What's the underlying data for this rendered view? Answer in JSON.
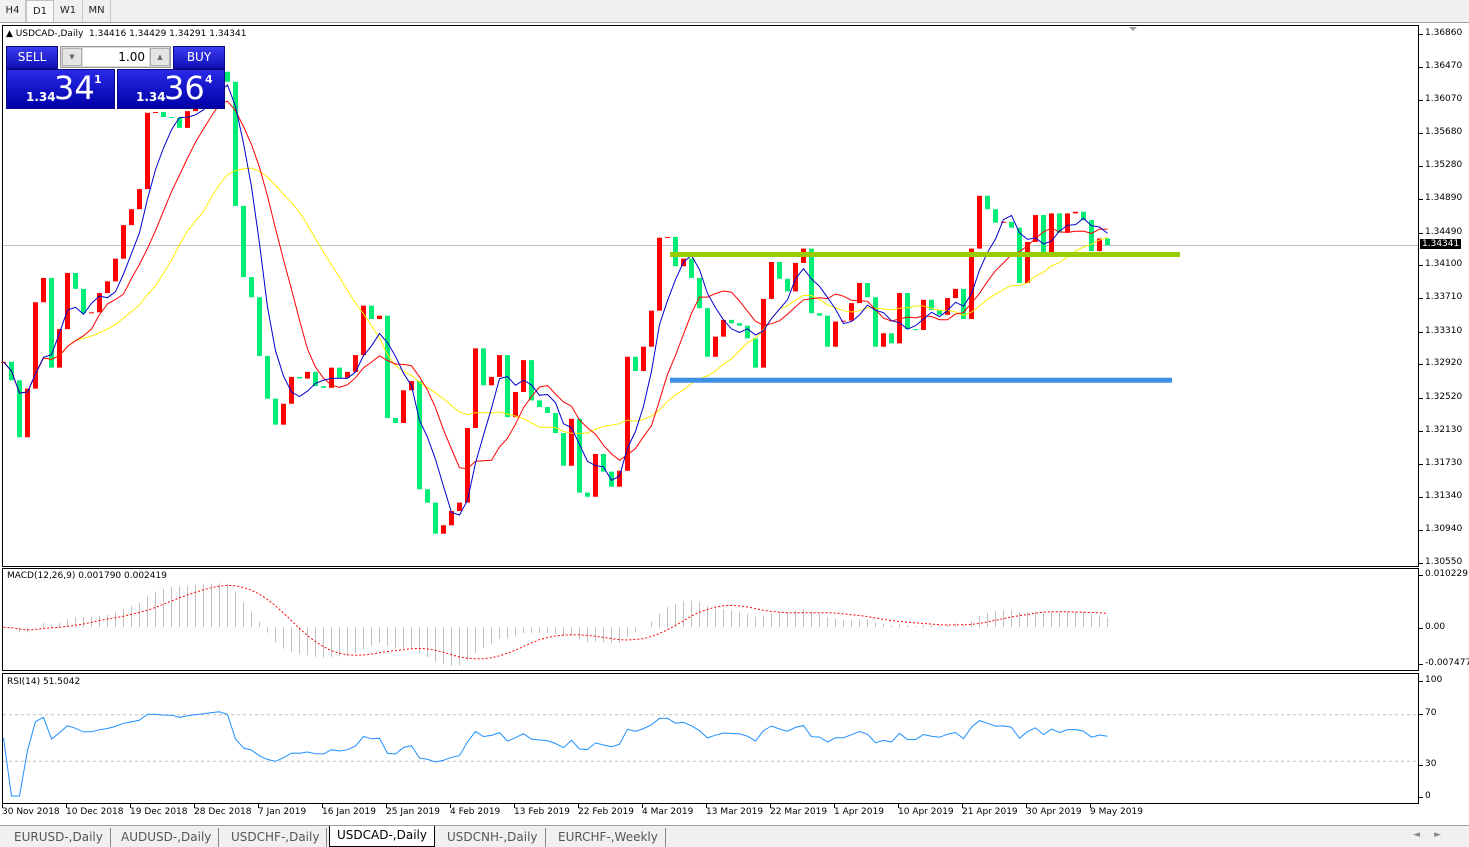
{
  "timeframes": [
    {
      "label": "H4",
      "active": false
    },
    {
      "label": "D1",
      "active": true
    },
    {
      "label": "W1",
      "active": false
    },
    {
      "label": "MN",
      "active": false
    }
  ],
  "chart_header": {
    "symbol": "USDCAD-,Daily",
    "ohlc": "1.34416 1.34429 1.34291 1.34341"
  },
  "trade_panel": {
    "sell_label": "SELL",
    "buy_label": "BUY",
    "quantity": "1.00",
    "sell_price": {
      "prefix": "1.34",
      "big": "34",
      "sup": "1"
    },
    "buy_price": {
      "prefix": "1.34",
      "big": "36",
      "sup": "4"
    }
  },
  "colors": {
    "up_candle": "#ff0000",
    "down_candle": "#00ee76",
    "ma_fast": "#0000d0",
    "ma_mid": "#ff0000",
    "ma_slow": "#ffee00",
    "support_line": "#3c91e6",
    "resistance_line": "#99cc00",
    "macd_hist": "#c0c0c0",
    "macd_signal": "#ff0000",
    "rsi_line": "#1e90ff"
  },
  "chart_data": {
    "type": "candlestick",
    "ylim": [
      1.3055,
      1.3686
    ],
    "yticks": [
      "1.36860",
      "1.36470",
      "1.36070",
      "1.35680",
      "1.35280",
      "1.34890",
      "1.34490",
      "1.34100",
      "1.33710",
      "1.33310",
      "1.32920",
      "1.32520",
      "1.32130",
      "1.31730",
      "1.31340",
      "1.30940",
      "1.30550"
    ],
    "current_price": "1.34341",
    "close": [
      1.3295,
      1.3273,
      1.3205,
      1.3263,
      1.3366,
      1.3395,
      1.3288,
      1.3334,
      1.3401,
      1.3382,
      1.3353,
      1.3354,
      1.3377,
      1.3391,
      1.3418,
      1.3458,
      1.3477,
      1.3501,
      1.3592,
      1.3593,
      1.3587,
      1.3586,
      1.3574,
      1.3594,
      1.3607,
      1.3617,
      1.3631,
      1.3641,
      1.3629,
      1.3481,
      1.3396,
      1.3372,
      1.3302,
      1.3251,
      1.322,
      1.3245,
      1.3277,
      1.3275,
      1.3283,
      1.3266,
      1.3264,
      1.3288,
      1.3276,
      1.3283,
      1.3303,
      1.3362,
      1.3346,
      1.335,
      1.3228,
      1.3222,
      1.3261,
      1.3272,
      1.3143,
      1.3127,
      1.309,
      1.31,
      1.3117,
      1.3127,
      1.3216,
      1.3311,
      1.3267,
      1.3277,
      1.3303,
      1.3229,
      1.3259,
      1.3297,
      1.3249,
      1.3241,
      1.3234,
      1.321,
      1.3171,
      1.3227,
      1.3139,
      1.3134,
      1.3185,
      1.3164,
      1.3146,
      1.3165,
      1.3301,
      1.3284,
      1.3313,
      1.3356,
      1.3443,
      1.3444,
      1.3409,
      1.3418,
      1.3395,
      1.3359,
      1.3301,
      1.3325,
      1.3345,
      1.3341,
      1.3338,
      1.3323,
      1.3288,
      1.337,
      1.3414,
      1.3394,
      1.3379,
      1.3413,
      1.343,
      1.3353,
      1.335,
      1.3313,
      1.3343,
      1.3344,
      1.3365,
      1.3389,
      1.3372,
      1.3313,
      1.3329,
      1.3317,
      1.3377,
      1.3334,
      1.3333,
      1.3369,
      1.3357,
      1.3351,
      1.3371,
      1.3382,
      1.3346,
      1.343,
      1.3493,
      1.3477,
      1.3461,
      1.3462,
      1.3455,
      1.3389,
      1.3438,
      1.347,
      1.3426,
      1.3472,
      1.3449,
      1.3472,
      1.3474,
      1.3464,
      1.3427,
      1.3442,
      1.3434
    ],
    "x_labels": [
      "30 Nov 2018",
      "10 Dec 2018",
      "19 Dec 2018",
      "28 Dec 2018",
      "7 Jan 2019",
      "16 Jan 2019",
      "25 Jan 2019",
      "4 Feb 2019",
      "13 Feb 2019",
      "22 Feb 2019",
      "4 Mar 2019",
      "13 Mar 2019",
      "22 Mar 2019",
      "1 Apr 2019",
      "10 Apr 2019",
      "21 Apr 2019",
      "30 Apr 2019",
      "9 May 2019"
    ],
    "horizontal_lines": [
      {
        "price": 1.3423,
        "color": "resistance"
      },
      {
        "price": 1.3273,
        "color": "support"
      }
    ]
  },
  "macd": {
    "label": "MACD(12,26,9) 0.001790 0.002419",
    "ticks": [
      "0.010229",
      "0.00",
      "-0.007477"
    ],
    "range": [
      -0.007477,
      0.010229
    ]
  },
  "rsi": {
    "label": "RSI(14) 51.5042",
    "ticks": [
      "100",
      "70",
      "30",
      "0"
    ],
    "levels": [
      70,
      30
    ]
  },
  "symbol_tabs": [
    {
      "label": "EURUSD-,Daily",
      "active": false
    },
    {
      "label": "AUDUSD-,Daily",
      "active": false
    },
    {
      "label": "USDCHF-,Daily",
      "active": false
    },
    {
      "label": "USDCAD-,Daily",
      "active": true
    },
    {
      "label": "USDCNH-,Daily",
      "active": false
    },
    {
      "label": "EURCHF-,Weekly",
      "active": false
    }
  ],
  "scroll_arrows": {
    "left": "◄",
    "right": "►"
  }
}
